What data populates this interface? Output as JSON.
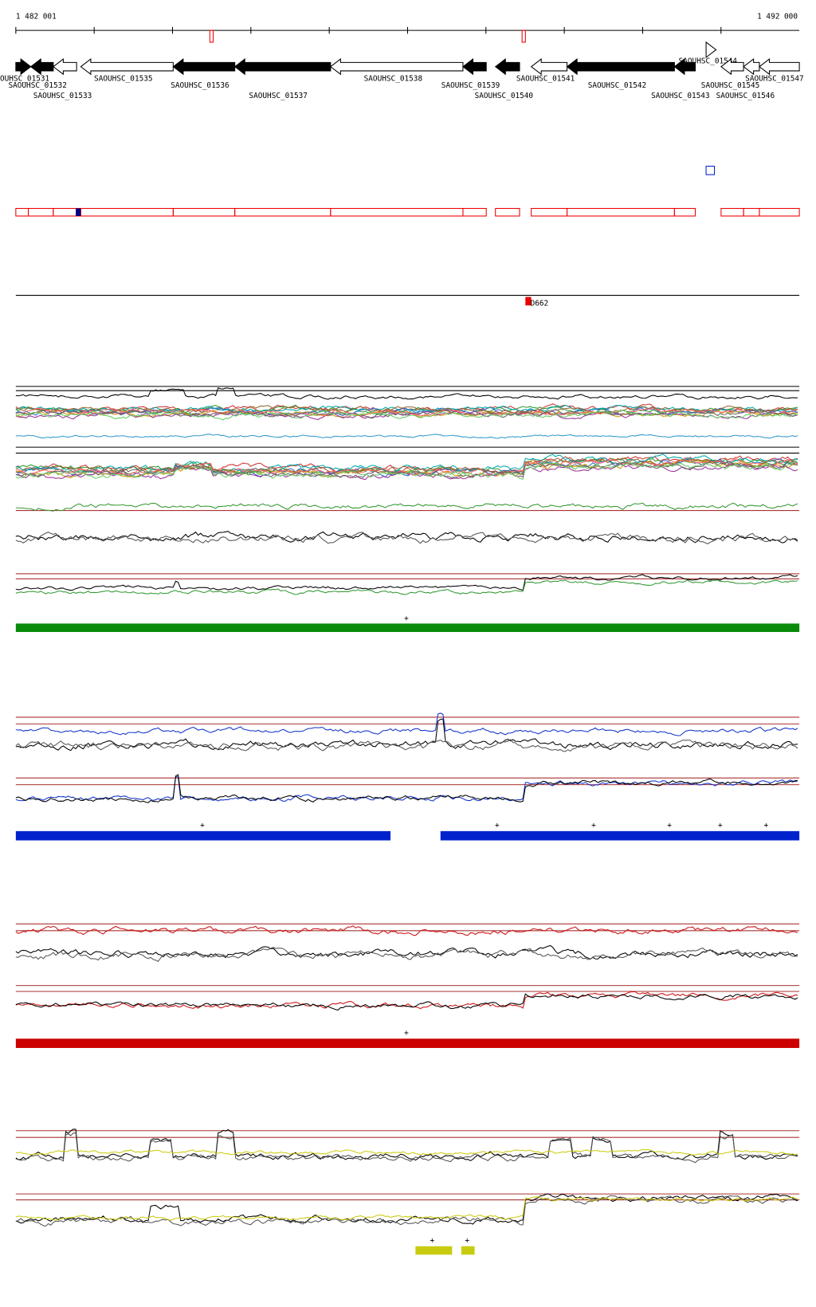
{
  "scale": {
    "start": "1 482 001",
    "end": "1 492 000"
  },
  "genes": [
    "OUHSC_01531",
    "SAOUHSC_01532",
    "SAOUHSC_01533",
    "SAOUHSC_01535",
    "SAOUHSC_01536",
    "SAOUHSC_01537",
    "SAOUHSC_01538",
    "SAOUHSC_01539",
    "SAOUHSC_01540",
    "SAOUHSC_01541",
    "SAOUHSC_01542",
    "SAOUHSC_01543",
    "SAOUHSC_01544",
    "SAOUHSC_01545",
    "SAOUHSC_01546",
    "SAOUHSC_01547"
  ],
  "feature": {
    "label": "D662"
  },
  "tracks": [
    {
      "signs": [
        "+"
      ]
    },
    {
      "signs": [
        "+",
        "+",
        "+",
        "+",
        "+",
        "+"
      ]
    },
    {
      "signs": [
        "+"
      ]
    },
    {
      "signs": [
        "+",
        "+"
      ]
    }
  ]
}
